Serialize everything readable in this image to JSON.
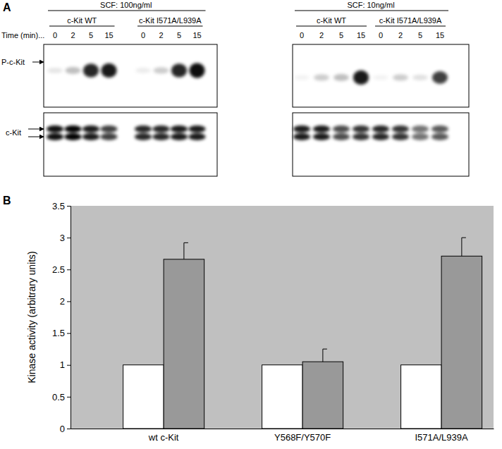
{
  "panel_a": {
    "label": "A",
    "time_label": "Time (min)...",
    "p_kit_label": "P-c-Kit",
    "kit_label": "c-Kit",
    "blots": [
      {
        "scf": "SCF: 100ng/ml",
        "groups": [
          {
            "name": "c-Kit WT",
            "lanes": [
              0,
              2,
              5,
              15
            ]
          },
          {
            "name": "c-Kit I571A/L939A",
            "lanes": [
              0,
              2,
              5,
              15
            ]
          }
        ],
        "p_kit_intensity": [
          0.1,
          0.25,
          0.85,
          0.9,
          0.08,
          0.2,
          0.85,
          0.95
        ],
        "kit_intensity": [
          0.95,
          1,
          0.9,
          0.75,
          0.85,
          0.85,
          0.9,
          0.9
        ]
      },
      {
        "scf": "SCF: 10ng/ml",
        "groups": [
          {
            "name": "c-Kit WT",
            "lanes": [
              0,
              2,
              5,
              15
            ]
          },
          {
            "name": "c-Kit I571A/L939A",
            "lanes": [
              0,
              2,
              5,
              15
            ]
          }
        ],
        "p_kit_intensity": [
          0.05,
          0.2,
          0.25,
          0.9,
          0.05,
          0.2,
          0.12,
          0.75
        ],
        "kit_intensity": [
          0.9,
          0.9,
          0.7,
          0.8,
          0.85,
          0.8,
          0.55,
          0.65
        ]
      }
    ]
  },
  "chart_data": {
    "type": "bar",
    "annotations": [
      "B"
    ],
    "y_label": "Kinase activity (arbitrary units)",
    "categories": [
      "wt c-Kit",
      "Y568F/Y570F",
      "I571A/L939A"
    ],
    "series": [
      {
        "color": "#ffffff",
        "values": [
          1,
          1,
          1
        ]
      },
      {
        "color": "#999999",
        "values": [
          2.66,
          1.05,
          2.71
        ],
        "errors": [
          0.26,
          0.2,
          0.29
        ]
      }
    ],
    "ylim": [
      0,
      3.5
    ],
    "yticks": [
      0,
      0.5,
      1,
      1.5,
      2,
      2.5,
      3,
      3.5
    ],
    "grid": false
  }
}
